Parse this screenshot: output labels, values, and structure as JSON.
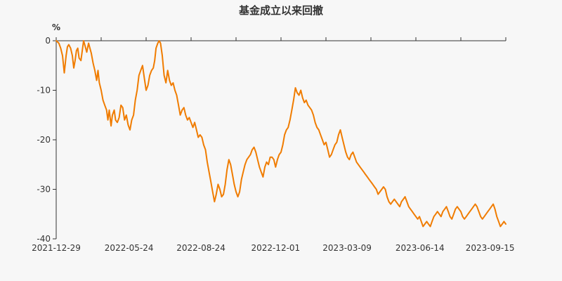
{
  "chart_data": {
    "type": "line",
    "title": "基金成立以来回撤",
    "ylabel": "%",
    "xlabel": "",
    "ylim": [
      -40,
      0
    ],
    "yticks": [
      0,
      -10,
      -20,
      -30,
      -40
    ],
    "yticklabels": [
      "0",
      "-10",
      "-20",
      "-30",
      "-40"
    ],
    "xticklabels": [
      "2021-12-29",
      "2022-05-24",
      "2022-08-24",
      "2022-12-01",
      "2023-03-09",
      "2023-06-14",
      "2023-09-15"
    ],
    "grid": false,
    "line_color": "#f07c00",
    "x_index_range": [
      0,
      100
    ],
    "xtick_index": [
      0,
      16.2,
      32.2,
      48.8,
      64.7,
      80.9,
      96.5
    ],
    "series": [
      {
        "points": [
          [
            0,
            0
          ],
          [
            0.6,
            -0.5
          ],
          [
            1,
            -1.5
          ],
          [
            1.4,
            -3
          ],
          [
            1.8,
            -6.5
          ],
          [
            2.2,
            -3
          ],
          [
            2.5,
            -1.2
          ],
          [
            2.8,
            -0.8
          ],
          [
            3.2,
            -1.5
          ],
          [
            3.6,
            -3
          ],
          [
            3.9,
            -5.5
          ],
          [
            4.2,
            -4
          ],
          [
            4.5,
            -2
          ],
          [
            4.8,
            -1.5
          ],
          [
            5.1,
            -3.5
          ],
          [
            5.5,
            -4
          ],
          [
            5.8,
            -2
          ],
          [
            6.1,
            0
          ],
          [
            6.4,
            -1
          ],
          [
            6.8,
            -2.3
          ],
          [
            7.2,
            -0.5
          ],
          [
            7.5,
            -1.5
          ],
          [
            7.8,
            -2.5
          ],
          [
            8.2,
            -4.5
          ],
          [
            8.6,
            -6
          ],
          [
            9,
            -8
          ],
          [
            9.3,
            -6
          ],
          [
            9.6,
            -8.5
          ],
          [
            10,
            -10
          ],
          [
            10.4,
            -12
          ],
          [
            10.8,
            -13
          ],
          [
            11.2,
            -14
          ],
          [
            11.5,
            -16
          ],
          [
            11.8,
            -14
          ],
          [
            12.2,
            -17.2
          ],
          [
            12.5,
            -15
          ],
          [
            12.9,
            -14
          ],
          [
            13.2,
            -16
          ],
          [
            13.6,
            -16.5
          ],
          [
            14,
            -15.5
          ],
          [
            14.4,
            -13
          ],
          [
            14.8,
            -13.5
          ],
          [
            15.2,
            -16
          ],
          [
            15.6,
            -15
          ],
          [
            16,
            -17
          ],
          [
            16.4,
            -18
          ],
          [
            16.8,
            -16
          ],
          [
            17.2,
            -15
          ],
          [
            17.6,
            -12
          ],
          [
            18,
            -10
          ],
          [
            18.4,
            -7
          ],
          [
            18.8,
            -6
          ],
          [
            19.2,
            -5
          ],
          [
            19.6,
            -7.5
          ],
          [
            20,
            -10
          ],
          [
            20.4,
            -9
          ],
          [
            20.8,
            -7
          ],
          [
            21.2,
            -6
          ],
          [
            21.6,
            -5.5
          ],
          [
            21.9,
            -4
          ],
          [
            22.2,
            -1.5
          ],
          [
            22.6,
            -0.5
          ],
          [
            22.9,
            0
          ],
          [
            23.2,
            -0.5
          ],
          [
            23.6,
            -3
          ],
          [
            24,
            -7
          ],
          [
            24.4,
            -8.5
          ],
          [
            24.8,
            -6
          ],
          [
            25.2,
            -8
          ],
          [
            25.6,
            -9
          ],
          [
            26,
            -8.5
          ],
          [
            26.4,
            -10
          ],
          [
            26.8,
            -11
          ],
          [
            27.2,
            -13
          ],
          [
            27.6,
            -15
          ],
          [
            28,
            -14
          ],
          [
            28.4,
            -13.5
          ],
          [
            28.8,
            -15
          ],
          [
            29.2,
            -16
          ],
          [
            29.6,
            -15.5
          ],
          [
            30,
            -16.5
          ],
          [
            30.4,
            -17.5
          ],
          [
            30.8,
            -16.5
          ],
          [
            31.2,
            -18
          ],
          [
            31.6,
            -19.5
          ],
          [
            32,
            -19
          ],
          [
            32.4,
            -19.5
          ],
          [
            32.8,
            -21
          ],
          [
            33.2,
            -22
          ],
          [
            33.6,
            -24.5
          ],
          [
            34,
            -26.5
          ],
          [
            34.4,
            -28.5
          ],
          [
            34.8,
            -30.5
          ],
          [
            35.2,
            -32.5
          ],
          [
            35.6,
            -31
          ],
          [
            36,
            -29
          ],
          [
            36.4,
            -30
          ],
          [
            36.8,
            -31.5
          ],
          [
            37.2,
            -31
          ],
          [
            37.6,
            -29
          ],
          [
            38,
            -26
          ],
          [
            38.4,
            -24
          ],
          [
            38.8,
            -25
          ],
          [
            39.2,
            -27
          ],
          [
            39.6,
            -29
          ],
          [
            40,
            -30.5
          ],
          [
            40.4,
            -31.5
          ],
          [
            40.8,
            -30.5
          ],
          [
            41.2,
            -28
          ],
          [
            41.6,
            -26.5
          ],
          [
            42,
            -25
          ],
          [
            42.4,
            -24
          ],
          [
            42.8,
            -23.5
          ],
          [
            43.2,
            -23
          ],
          [
            43.6,
            -22
          ],
          [
            44,
            -21.5
          ],
          [
            44.4,
            -22.5
          ],
          [
            44.8,
            -24
          ],
          [
            45.2,
            -25.5
          ],
          [
            45.6,
            -26.5
          ],
          [
            46,
            -27.5
          ],
          [
            46.4,
            -25.5
          ],
          [
            46.8,
            -24.5
          ],
          [
            47.2,
            -25
          ],
          [
            47.6,
            -23.5
          ],
          [
            48,
            -23.5
          ],
          [
            48.4,
            -24
          ],
          [
            48.8,
            -25.5
          ],
          [
            49.2,
            -24
          ],
          [
            49.6,
            -23
          ],
          [
            50,
            -22.5
          ],
          [
            50.4,
            -21
          ],
          [
            50.8,
            -19
          ],
          [
            51.2,
            -18
          ],
          [
            51.6,
            -17.5
          ],
          [
            52,
            -16
          ],
          [
            52.4,
            -14
          ],
          [
            52.8,
            -12
          ],
          [
            53.2,
            -9.5
          ],
          [
            53.6,
            -10.5
          ],
          [
            54,
            -11
          ],
          [
            54.4,
            -10
          ],
          [
            54.8,
            -11.5
          ],
          [
            55.2,
            -12.5
          ],
          [
            55.6,
            -12
          ],
          [
            56,
            -13
          ],
          [
            56.4,
            -13.5
          ],
          [
            56.8,
            -14
          ],
          [
            57.2,
            -15
          ],
          [
            57.6,
            -16.5
          ],
          [
            58,
            -17.5
          ],
          [
            58.4,
            -18
          ],
          [
            58.8,
            -19
          ],
          [
            59.2,
            -20
          ],
          [
            59.6,
            -21
          ],
          [
            60,
            -20.5
          ],
          [
            60.4,
            -22
          ],
          [
            60.8,
            -23.5
          ],
          [
            61.2,
            -23
          ],
          [
            61.6,
            -22
          ],
          [
            62,
            -21
          ],
          [
            62.4,
            -20.5
          ],
          [
            62.8,
            -19
          ],
          [
            63.2,
            -18
          ],
          [
            63.6,
            -19.5
          ],
          [
            64,
            -21
          ],
          [
            64.4,
            -22.5
          ],
          [
            64.8,
            -23.5
          ],
          [
            65.2,
            -24
          ],
          [
            65.6,
            -23
          ],
          [
            66,
            -22.5
          ],
          [
            66.4,
            -23.5
          ],
          [
            66.8,
            -24.5
          ],
          [
            67.2,
            -25
          ],
          [
            67.6,
            -25.5
          ],
          [
            68,
            -26
          ],
          [
            68.4,
            -26.5
          ],
          [
            68.8,
            -27
          ],
          [
            69.2,
            -27.5
          ],
          [
            69.6,
            -28
          ],
          [
            70,
            -28.5
          ],
          [
            70.4,
            -29
          ],
          [
            70.8,
            -29.5
          ],
          [
            71.2,
            -30
          ],
          [
            71.6,
            -31
          ],
          [
            72,
            -30.5
          ],
          [
            72.4,
            -30
          ],
          [
            72.8,
            -29.5
          ],
          [
            73.2,
            -30
          ],
          [
            73.6,
            -31.5
          ],
          [
            74,
            -32.5
          ],
          [
            74.4,
            -33
          ],
          [
            74.8,
            -32.5
          ],
          [
            75.2,
            -32
          ],
          [
            75.6,
            -32.5
          ],
          [
            76,
            -33
          ],
          [
            76.4,
            -33.5
          ],
          [
            76.8,
            -32.5
          ],
          [
            77.2,
            -32
          ],
          [
            77.6,
            -31.5
          ],
          [
            78,
            -32.5
          ],
          [
            78.4,
            -33.5
          ],
          [
            78.8,
            -34
          ],
          [
            79.2,
            -34.5
          ],
          [
            79.6,
            -35
          ],
          [
            80,
            -35.5
          ],
          [
            80.4,
            -36
          ],
          [
            80.8,
            -35.5
          ],
          [
            81.2,
            -36.5
          ],
          [
            81.6,
            -37.5
          ],
          [
            82,
            -37
          ],
          [
            82.4,
            -36.5
          ],
          [
            82.8,
            -37
          ],
          [
            83.2,
            -37.5
          ],
          [
            83.6,
            -36.5
          ],
          [
            84,
            -35.5
          ],
          [
            84.4,
            -35
          ],
          [
            84.8,
            -34.5
          ],
          [
            85.2,
            -35
          ],
          [
            85.6,
            -35.5
          ],
          [
            86,
            -34.5
          ],
          [
            86.4,
            -34
          ],
          [
            86.8,
            -33.5
          ],
          [
            87.2,
            -34.5
          ],
          [
            87.6,
            -35.5
          ],
          [
            88,
            -36
          ],
          [
            88.4,
            -35
          ],
          [
            88.8,
            -34
          ],
          [
            89.2,
            -33.5
          ],
          [
            89.6,
            -34
          ],
          [
            90,
            -34.5
          ],
          [
            90.4,
            -35.5
          ],
          [
            90.8,
            -36
          ],
          [
            91.2,
            -35.5
          ],
          [
            91.6,
            -35
          ],
          [
            92,
            -34.5
          ],
          [
            92.4,
            -34
          ],
          [
            92.8,
            -33.5
          ],
          [
            93.2,
            -33
          ],
          [
            93.6,
            -33.5
          ],
          [
            94,
            -34.5
          ],
          [
            94.4,
            -35.5
          ],
          [
            94.8,
            -36
          ],
          [
            95.2,
            -35.5
          ],
          [
            95.6,
            -35
          ],
          [
            96,
            -34.5
          ],
          [
            96.4,
            -34
          ],
          [
            96.8,
            -33.5
          ],
          [
            97.2,
            -33
          ],
          [
            97.6,
            -34
          ],
          [
            98,
            -35.5
          ],
          [
            98.4,
            -36.5
          ],
          [
            98.8,
            -37.5
          ],
          [
            99.2,
            -37
          ],
          [
            99.6,
            -36.5
          ],
          [
            100,
            -37
          ]
        ]
      }
    ]
  }
}
